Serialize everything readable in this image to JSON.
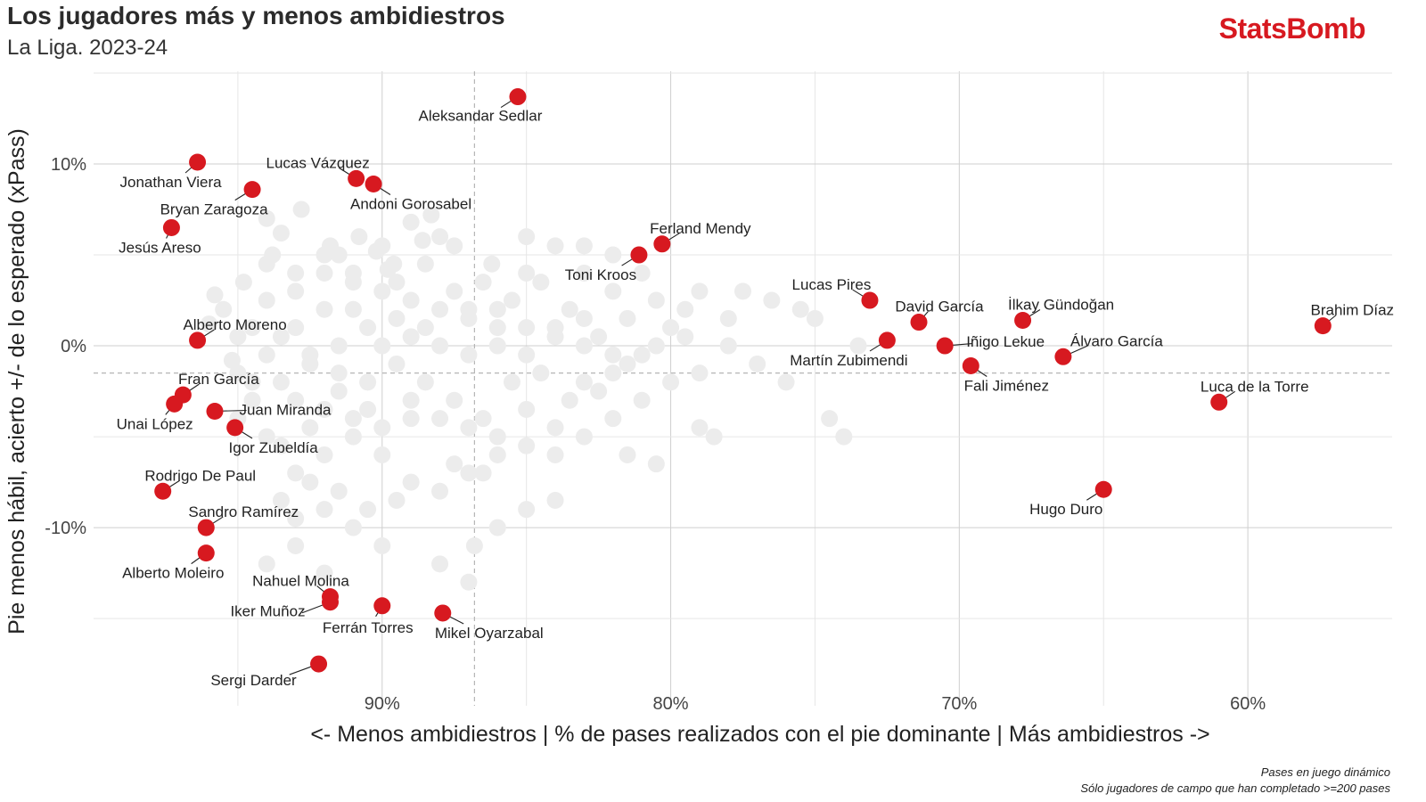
{
  "header": {
    "title": "Los jugadores más y menos ambidiestros",
    "subtitle": "La Liga. 2023-24",
    "brand": "StatsBomb"
  },
  "footnotes": {
    "line1": "Pases en juego dinámico",
    "line2": "Sólo jugadores de campo que han completado >=200 pases"
  },
  "chart_data": {
    "type": "scatter",
    "title": "Los jugadores más y menos ambidiestros",
    "subtitle": "La Liga. 2023-24",
    "xlabel": "<- Menos ambidiestros | % de pases realizados con el pie dominante | Más ambidiestros ->",
    "ylabel": "Pie menos hábil, acierto +/- de lo esperado (xPass)",
    "x_reversed": true,
    "xlim": [
      100,
      55
    ],
    "ylim": [
      -19.8,
      15.1
    ],
    "x_ticks": [
      90,
      80,
      70,
      60
    ],
    "x_tick_labels": [
      "90%",
      "80%",
      "70%",
      "60%"
    ],
    "y_ticks": [
      10,
      0,
      -10
    ],
    "y_tick_labels": [
      "10%",
      "0%",
      "-10%"
    ],
    "x_mean": 86.8,
    "y_mean": -1.5,
    "grid": true,
    "highlight_color": "#d71920",
    "background_point_color": "#ececec",
    "highlighted": [
      {
        "name": "Aleksandar Sedlar",
        "x": 85.3,
        "y": 13.7
      },
      {
        "name": "Jonathan Viera",
        "x": 96.4,
        "y": 10.1
      },
      {
        "name": "Lucas Vázquez",
        "x": 90.9,
        "y": 9.2
      },
      {
        "name": "Andoni Gorosabel",
        "x": 90.3,
        "y": 8.9
      },
      {
        "name": "Bryan Zaragoza",
        "x": 94.5,
        "y": 8.6
      },
      {
        "name": "Jesús Areso",
        "x": 97.3,
        "y": 6.5
      },
      {
        "name": "Ferland Mendy",
        "x": 80.3,
        "y": 5.6
      },
      {
        "name": "Toni Kroos",
        "x": 81.1,
        "y": 5.0
      },
      {
        "name": "Lucas Pires",
        "x": 73.1,
        "y": 2.5
      },
      {
        "name": "David García",
        "x": 71.4,
        "y": 1.3
      },
      {
        "name": "İlkay Gündoğan",
        "x": 67.8,
        "y": 1.4
      },
      {
        "name": "Brahim Díaz",
        "x": 57.4,
        "y": 1.1
      },
      {
        "name": "Alberto Moreno",
        "x": 96.4,
        "y": 0.3
      },
      {
        "name": "Martín Zubimendi",
        "x": 72.5,
        "y": 0.3
      },
      {
        "name": "Iñigo Lekue",
        "x": 70.5,
        "y": 0.0
      },
      {
        "name": "Álvaro García",
        "x": 66.4,
        "y": -0.6
      },
      {
        "name": "Fali Jiménez",
        "x": 69.6,
        "y": -1.1
      },
      {
        "name": "Fran García",
        "x": 96.9,
        "y": -2.7
      },
      {
        "name": "Unai López",
        "x": 97.2,
        "y": -3.2
      },
      {
        "name": "Juan Miranda",
        "x": 95.8,
        "y": -3.6
      },
      {
        "name": "Igor Zubeldía",
        "x": 95.1,
        "y": -4.5
      },
      {
        "name": "Luca de la Torre",
        "x": 61.0,
        "y": -3.1
      },
      {
        "name": "Rodrigo De Paul",
        "x": 97.6,
        "y": -8.0
      },
      {
        "name": "Hugo Duro",
        "x": 65.0,
        "y": -7.9
      },
      {
        "name": "Sandro Ramírez",
        "x": 96.1,
        "y": -10.0
      },
      {
        "name": "Alberto Moleiro",
        "x": 96.1,
        "y": -11.4
      },
      {
        "name": "Nahuel Molina",
        "x": 91.8,
        "y": -13.8
      },
      {
        "name": "Iker Muñoz",
        "x": 91.8,
        "y": -14.1
      },
      {
        "name": "Ferrán Torres",
        "x": 90.0,
        "y": -14.3
      },
      {
        "name": "Mikel Oyarzabal",
        "x": 87.9,
        "y": -14.7
      },
      {
        "name": "Sergi Darder",
        "x": 92.2,
        "y": -17.5
      }
    ],
    "others": [
      [
        94.0,
        7.0
      ],
      [
        93.5,
        6.2
      ],
      [
        92.8,
        7.5
      ],
      [
        91.5,
        5.0
      ],
      [
        90.2,
        5.2
      ],
      [
        89.6,
        4.5
      ],
      [
        88.0,
        6.0
      ],
      [
        87.5,
        5.5
      ],
      [
        89.0,
        6.8
      ],
      [
        88.3,
        7.2
      ],
      [
        94.0,
        4.5
      ],
      [
        93.0,
        3.0
      ],
      [
        92.0,
        4.0
      ],
      [
        91.0,
        3.5
      ],
      [
        90.0,
        3.0
      ],
      [
        89.0,
        2.5
      ],
      [
        88.0,
        2.0
      ],
      [
        87.0,
        1.5
      ],
      [
        86.0,
        2.0
      ],
      [
        85.0,
        1.0
      ],
      [
        84.5,
        3.5
      ],
      [
        85.0,
        4.0
      ],
      [
        84.0,
        5.5
      ],
      [
        83.0,
        4.0
      ],
      [
        82.0,
        3.0
      ],
      [
        81.5,
        1.5
      ],
      [
        83.5,
        2.0
      ],
      [
        84.0,
        0.5
      ],
      [
        83.0,
        0.0
      ],
      [
        82.0,
        -0.5
      ],
      [
        80.0,
        1.0
      ],
      [
        79.5,
        2.0
      ],
      [
        80.5,
        0.0
      ],
      [
        79.0,
        3.0
      ],
      [
        78.0,
        0.0
      ],
      [
        77.0,
        -1.0
      ],
      [
        76.0,
        -2.0
      ],
      [
        75.0,
        1.5
      ],
      [
        74.5,
        -4.0
      ],
      [
        74.0,
        -5.0
      ],
      [
        73.5,
        0.0
      ],
      [
        79.0,
        -1.5
      ],
      [
        80.0,
        -2.0
      ],
      [
        81.0,
        -3.0
      ],
      [
        82.0,
        -4.0
      ],
      [
        83.0,
        -5.0
      ],
      [
        84.0,
        -6.0
      ],
      [
        85.0,
        -5.5
      ],
      [
        86.0,
        -6.0
      ],
      [
        87.0,
        -7.0
      ],
      [
        88.0,
        -8.0
      ],
      [
        89.0,
        -7.5
      ],
      [
        90.0,
        -6.0
      ],
      [
        91.0,
        -5.0
      ],
      [
        92.0,
        -6.0
      ],
      [
        93.0,
        -7.0
      ],
      [
        94.0,
        -5.0
      ],
      [
        95.0,
        -4.0
      ],
      [
        94.5,
        -3.0
      ],
      [
        93.5,
        -2.0
      ],
      [
        92.5,
        -1.0
      ],
      [
        91.5,
        0.0
      ],
      [
        90.5,
        1.0
      ],
      [
        89.5,
        -1.0
      ],
      [
        88.5,
        -2.0
      ],
      [
        87.5,
        -3.0
      ],
      [
        86.5,
        -4.0
      ],
      [
        85.5,
        -2.0
      ],
      [
        84.5,
        -1.5
      ],
      [
        83.5,
        -3.0
      ],
      [
        82.5,
        -2.5
      ],
      [
        81.5,
        -6.0
      ],
      [
        80.5,
        -6.5
      ],
      [
        79.0,
        -4.5
      ],
      [
        78.5,
        -5.0
      ],
      [
        92.0,
        -9.0
      ],
      [
        91.0,
        -10.0
      ],
      [
        90.0,
        -11.0
      ],
      [
        93.0,
        -11.0
      ],
      [
        94.0,
        -12.0
      ],
      [
        88.0,
        -12.0
      ],
      [
        87.0,
        -13.0
      ],
      [
        86.0,
        -10.0
      ],
      [
        85.0,
        -9.0
      ],
      [
        84.0,
        -8.5
      ],
      [
        89.0,
        -4.0
      ],
      [
        90.5,
        -3.5
      ],
      [
        91.5,
        -2.5
      ],
      [
        92.5,
        -4.5
      ],
      [
        93.5,
        -5.5
      ],
      [
        95.0,
        -1.5
      ],
      [
        94.0,
        -0.5
      ],
      [
        93.0,
        1.0
      ],
      [
        92.0,
        2.0
      ],
      [
        91.0,
        2.0
      ],
      [
        90.0,
        0.0
      ],
      [
        89.0,
        0.5
      ],
      [
        88.0,
        0.0
      ],
      [
        87.0,
        -0.5
      ],
      [
        86.0,
        0.0
      ],
      [
        85.0,
        -0.5
      ],
      [
        84.0,
        1.0
      ],
      [
        83.0,
        1.5
      ],
      [
        82.5,
        0.5
      ],
      [
        81.5,
        -1.0
      ],
      [
        95.5,
        2.0
      ],
      [
        94.5,
        1.0
      ],
      [
        94.0,
        2.5
      ],
      [
        93.0,
        4.0
      ],
      [
        92.0,
        5.0
      ],
      [
        91.0,
        4.0
      ],
      [
        90.0,
        5.5
      ],
      [
        89.5,
        3.5
      ],
      [
        88.5,
        4.5
      ],
      [
        87.5,
        3.0
      ],
      [
        86.5,
        3.5
      ],
      [
        86.0,
        1.0
      ],
      [
        85.5,
        2.5
      ],
      [
        87.0,
        2.0
      ],
      [
        88.5,
        1.0
      ],
      [
        89.5,
        1.5
      ],
      [
        90.5,
        -2.0
      ],
      [
        91.5,
        -1.5
      ],
      [
        92.5,
        -0.5
      ],
      [
        93.5,
        0.5
      ],
      [
        94.5,
        -2.0
      ],
      [
        95.0,
        0.5
      ],
      [
        93.0,
        -3.0
      ],
      [
        92.0,
        -3.5
      ],
      [
        91.0,
        -4.0
      ],
      [
        90.0,
        -4.5
      ],
      [
        89.0,
        -3.0
      ],
      [
        88.0,
        -4.0
      ],
      [
        87.0,
        -4.5
      ],
      [
        86.0,
        -5.0
      ],
      [
        85.0,
        -3.5
      ],
      [
        84.0,
        -4.5
      ],
      [
        83.0,
        -2.0
      ],
      [
        82.0,
        -1.5
      ],
      [
        81.0,
        -0.5
      ],
      [
        87.5,
        -6.5
      ],
      [
        86.5,
        -7.0
      ],
      [
        89.5,
        -8.5
      ],
      [
        90.5,
        -9.0
      ],
      [
        91.5,
        -8.0
      ],
      [
        92.5,
        -7.5
      ],
      [
        93.5,
        -8.5
      ],
      [
        93.0,
        -9.5
      ],
      [
        92.0,
        -12.5
      ],
      [
        86.8,
        -11.0
      ],
      [
        75.5,
        2.0
      ],
      [
        76.5,
        2.5
      ],
      [
        77.5,
        3.0
      ],
      [
        78.0,
        1.5
      ],
      [
        79.5,
        0.5
      ],
      [
        80.5,
        2.5
      ],
      [
        81.0,
        4.0
      ],
      [
        82.0,
        5.0
      ],
      [
        83.0,
        5.5
      ],
      [
        85.0,
        6.0
      ],
      [
        86.2,
        4.5
      ],
      [
        88.6,
        5.8
      ],
      [
        89.8,
        4.2
      ],
      [
        90.8,
        6.0
      ],
      [
        91.8,
        5.5
      ],
      [
        93.8,
        5.0
      ],
      [
        94.8,
        3.5
      ],
      [
        95.8,
        2.8
      ],
      [
        96.0,
        1.2
      ],
      [
        95.2,
        -0.8
      ]
    ]
  }
}
